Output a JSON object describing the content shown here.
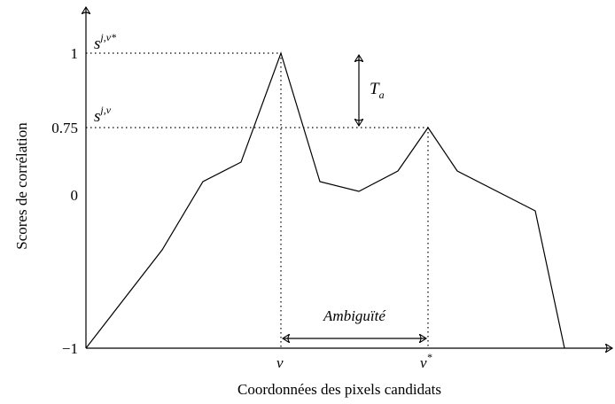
{
  "axes": {
    "x_label": "Coordonnées des pixels candidats",
    "y_label": "Scores de corrélation",
    "y_tick_labels": [
      "1",
      "0.75",
      "0",
      "−1"
    ],
    "x_tick_labels": [
      {
        "base": "v",
        "sup": ""
      },
      {
        "base": "v",
        "sup": "*"
      }
    ]
  },
  "annotations": {
    "peak_high": {
      "base": "s",
      "sup": "j,v*"
    },
    "peak_low": {
      "base": "s",
      "sup": "j,v"
    },
    "threshold": {
      "base": "T",
      "sub": "a"
    },
    "ambiguity": "Ambiguïté"
  }
}
